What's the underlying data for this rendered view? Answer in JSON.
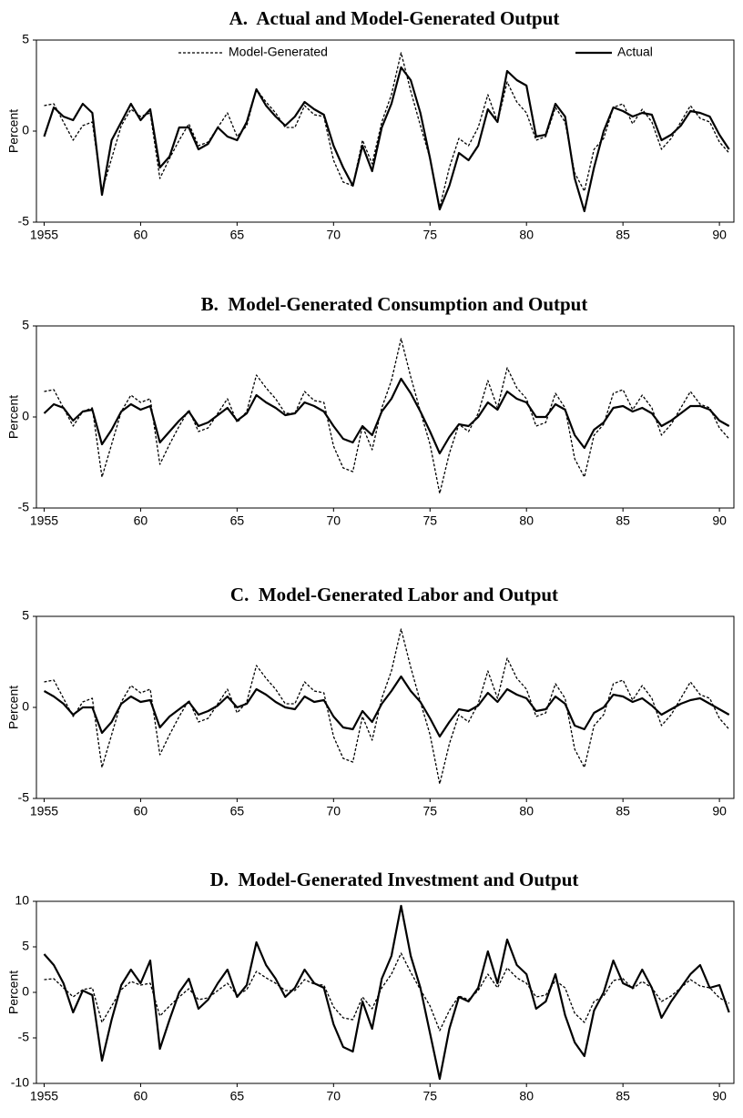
{
  "chart_data": [
    {
      "type": "line",
      "title": "A.  Actual and Model-Generated Output",
      "ylabel": "Percent",
      "legend": "top",
      "x": [
        1955,
        1955.5,
        1956,
        1956.5,
        1957,
        1957.5,
        1958,
        1958.5,
        1959,
        1959.5,
        1960,
        1960.5,
        1961,
        1961.5,
        1962,
        1962.5,
        1963,
        1963.5,
        1964,
        1964.5,
        1965,
        1965.5,
        1966,
        1966.5,
        1967,
        1967.5,
        1968,
        1968.5,
        1969,
        1969.5,
        1970,
        1970.5,
        1971,
        1971.5,
        1972,
        1972.5,
        1973,
        1973.5,
        1974,
        1974.5,
        1975,
        1975.5,
        1976,
        1976.5,
        1977,
        1977.5,
        1978,
        1978.5,
        1979,
        1979.5,
        1980,
        1980.5,
        1981,
        1981.5,
        1982,
        1982.5,
        1983,
        1983.5,
        1984,
        1984.5,
        1985,
        1985.5,
        1986,
        1986.5,
        1987,
        1987.5,
        1988,
        1988.5,
        1989,
        1989.5,
        1990,
        1990.5
      ],
      "xlim": [
        1954.6,
        1990.75
      ],
      "xticks": [
        {
          "value": 1955,
          "label": "1955"
        },
        {
          "value": 1960,
          "label": "60"
        },
        {
          "value": 1965,
          "label": "65"
        },
        {
          "value": 1970,
          "label": "70"
        },
        {
          "value": 1975,
          "label": "75"
        },
        {
          "value": 1980,
          "label": "80"
        },
        {
          "value": 1985,
          "label": "85"
        },
        {
          "value": 1990,
          "label": "90"
        }
      ],
      "ylim": [
        -5,
        5
      ],
      "yticks": [
        -5,
        0,
        5
      ],
      "series": [
        {
          "name": "Model-Generated",
          "color": "#000000",
          "style": "dashed",
          "values": [
            1.4,
            1.5,
            0.5,
            -0.5,
            0.3,
            0.5,
            -3.3,
            -1.5,
            0.3,
            1.2,
            0.8,
            1.0,
            -2.6,
            -1.5,
            -0.5,
            0.4,
            -0.8,
            -0.6,
            0.2,
            1.0,
            -0.3,
            0.3,
            2.3,
            1.6,
            1.0,
            0.2,
            0.2,
            1.4,
            0.9,
            0.8,
            -1.6,
            -2.8,
            -3.0,
            -0.5,
            -1.8,
            0.5,
            2.0,
            4.3,
            2.2,
            0.3,
            -1.5,
            -4.2,
            -2.0,
            -0.4,
            -0.8,
            0.2,
            2.0,
            0.5,
            2.7,
            1.6,
            1.0,
            -0.5,
            -0.3,
            1.3,
            0.5,
            -2.3,
            -3.3,
            -1.0,
            -0.4,
            1.3,
            1.5,
            0.4,
            1.2,
            0.5,
            -1.0,
            -0.4,
            0.5,
            1.4,
            0.7,
            0.5,
            -0.6,
            -1.2
          ]
        },
        {
          "name": "Actual",
          "color": "#000000",
          "style": "solid",
          "values": [
            -0.3,
            1.3,
            0.8,
            0.6,
            1.5,
            1.0,
            -3.5,
            -0.5,
            0.5,
            1.5,
            0.6,
            1.2,
            -2.0,
            -1.4,
            0.2,
            0.2,
            -1.0,
            -0.7,
            0.2,
            -0.3,
            -0.5,
            0.5,
            2.3,
            1.4,
            0.8,
            0.3,
            0.8,
            1.6,
            1.2,
            0.9,
            -0.8,
            -2.0,
            -3.0,
            -0.8,
            -2.2,
            0.2,
            1.5,
            3.5,
            2.8,
            1.0,
            -1.5,
            -4.3,
            -3.0,
            -1.2,
            -1.6,
            -0.8,
            1.2,
            0.5,
            3.3,
            2.8,
            2.5,
            -0.3,
            -0.2,
            1.5,
            0.8,
            -2.6,
            -4.4,
            -2.0,
            0.0,
            1.3,
            1.1,
            0.8,
            1.0,
            0.9,
            -0.5,
            -0.2,
            0.3,
            1.1,
            1.0,
            0.8,
            -0.2,
            -1.0
          ]
        }
      ]
    },
    {
      "type": "line",
      "title": "B.  Model-Generated Consumption and Output",
      "ylabel": "Percent",
      "x": [
        1955,
        1955.5,
        1956,
        1956.5,
        1957,
        1957.5,
        1958,
        1958.5,
        1959,
        1959.5,
        1960,
        1960.5,
        1961,
        1961.5,
        1962,
        1962.5,
        1963,
        1963.5,
        1964,
        1964.5,
        1965,
        1965.5,
        1966,
        1966.5,
        1967,
        1967.5,
        1968,
        1968.5,
        1969,
        1969.5,
        1970,
        1970.5,
        1971,
        1971.5,
        1972,
        1972.5,
        1973,
        1973.5,
        1974,
        1974.5,
        1975,
        1975.5,
        1976,
        1976.5,
        1977,
        1977.5,
        1978,
        1978.5,
        1979,
        1979.5,
        1980,
        1980.5,
        1981,
        1981.5,
        1982,
        1982.5,
        1983,
        1983.5,
        1984,
        1984.5,
        1985,
        1985.5,
        1986,
        1986.5,
        1987,
        1987.5,
        1988,
        1988.5,
        1989,
        1989.5,
        1990,
        1990.5
      ],
      "xlim": [
        1954.6,
        1990.75
      ],
      "xticks": [
        {
          "value": 1955,
          "label": "1955"
        },
        {
          "value": 1960,
          "label": "60"
        },
        {
          "value": 1965,
          "label": "65"
        },
        {
          "value": 1970,
          "label": "70"
        },
        {
          "value": 1975,
          "label": "75"
        },
        {
          "value": 1980,
          "label": "80"
        },
        {
          "value": 1985,
          "label": "85"
        },
        {
          "value": 1990,
          "label": "90"
        }
      ],
      "ylim": [
        -5,
        5
      ],
      "yticks": [
        -5,
        0,
        5
      ],
      "series": [
        {
          "color": "#000000",
          "style": "dashed",
          "values": [
            1.4,
            1.5,
            0.5,
            -0.5,
            0.3,
            0.5,
            -3.3,
            -1.5,
            0.3,
            1.2,
            0.8,
            1.0,
            -2.6,
            -1.5,
            -0.5,
            0.4,
            -0.8,
            -0.6,
            0.2,
            1.0,
            -0.3,
            0.3,
            2.3,
            1.6,
            1.0,
            0.2,
            0.2,
            1.4,
            0.9,
            0.8,
            -1.6,
            -2.8,
            -3.0,
            -0.5,
            -1.8,
            0.5,
            2.0,
            4.3,
            2.2,
            0.3,
            -1.5,
            -4.2,
            -2.0,
            -0.4,
            -0.8,
            0.2,
            2.0,
            0.5,
            2.7,
            1.6,
            1.0,
            -0.5,
            -0.3,
            1.3,
            0.5,
            -2.3,
            -3.3,
            -1.0,
            -0.4,
            1.3,
            1.5,
            0.4,
            1.2,
            0.5,
            -1.0,
            -0.4,
            0.5,
            1.4,
            0.7,
            0.5,
            -0.6,
            -1.2
          ]
        },
        {
          "color": "#000000",
          "style": "solid",
          "values": [
            0.2,
            0.7,
            0.5,
            -0.2,
            0.3,
            0.4,
            -1.5,
            -0.7,
            0.3,
            0.7,
            0.4,
            0.6,
            -1.4,
            -0.8,
            -0.2,
            0.3,
            -0.5,
            -0.3,
            0.1,
            0.5,
            -0.2,
            0.2,
            1.2,
            0.8,
            0.5,
            0.1,
            0.2,
            0.8,
            0.6,
            0.3,
            -0.5,
            -1.2,
            -1.4,
            -0.5,
            -1.0,
            0.3,
            1.0,
            2.1,
            1.3,
            0.3,
            -0.8,
            -2.0,
            -1.1,
            -0.4,
            -0.5,
            0.0,
            0.8,
            0.4,
            1.4,
            1.0,
            0.8,
            0.0,
            0.0,
            0.7,
            0.4,
            -1.0,
            -1.7,
            -0.7,
            -0.3,
            0.5,
            0.6,
            0.3,
            0.5,
            0.2,
            -0.5,
            -0.2,
            0.2,
            0.6,
            0.6,
            0.4,
            -0.2,
            -0.5
          ]
        }
      ]
    },
    {
      "type": "line",
      "title": "C.  Model-Generated Labor and Output",
      "ylabel": "Percent",
      "x": [
        1955,
        1955.5,
        1956,
        1956.5,
        1957,
        1957.5,
        1958,
        1958.5,
        1959,
        1959.5,
        1960,
        1960.5,
        1961,
        1961.5,
        1962,
        1962.5,
        1963,
        1963.5,
        1964,
        1964.5,
        1965,
        1965.5,
        1966,
        1966.5,
        1967,
        1967.5,
        1968,
        1968.5,
        1969,
        1969.5,
        1970,
        1970.5,
        1971,
        1971.5,
        1972,
        1972.5,
        1973,
        1973.5,
        1974,
        1974.5,
        1975,
        1975.5,
        1976,
        1976.5,
        1977,
        1977.5,
        1978,
        1978.5,
        1979,
        1979.5,
        1980,
        1980.5,
        1981,
        1981.5,
        1982,
        1982.5,
        1983,
        1983.5,
        1984,
        1984.5,
        1985,
        1985.5,
        1986,
        1986.5,
        1987,
        1987.5,
        1988,
        1988.5,
        1989,
        1989.5,
        1990,
        1990.5
      ],
      "xlim": [
        1954.6,
        1990.75
      ],
      "xticks": [
        {
          "value": 1955,
          "label": "1955"
        },
        {
          "value": 1960,
          "label": "60"
        },
        {
          "value": 1965,
          "label": "65"
        },
        {
          "value": 1970,
          "label": "70"
        },
        {
          "value": 1975,
          "label": "75"
        },
        {
          "value": 1980,
          "label": "80"
        },
        {
          "value": 1985,
          "label": "85"
        },
        {
          "value": 1990,
          "label": "90"
        }
      ],
      "ylim": [
        -5,
        5
      ],
      "yticks": [
        -5,
        0,
        5
      ],
      "series": [
        {
          "color": "#000000",
          "style": "dashed",
          "values": [
            1.4,
            1.5,
            0.5,
            -0.5,
            0.3,
            0.5,
            -3.3,
            -1.5,
            0.3,
            1.2,
            0.8,
            1.0,
            -2.6,
            -1.5,
            -0.5,
            0.4,
            -0.8,
            -0.6,
            0.2,
            1.0,
            -0.3,
            0.3,
            2.3,
            1.6,
            1.0,
            0.2,
            0.2,
            1.4,
            0.9,
            0.8,
            -1.6,
            -2.8,
            -3.0,
            -0.5,
            -1.8,
            0.5,
            2.0,
            4.3,
            2.2,
            0.3,
            -1.5,
            -4.2,
            -2.0,
            -0.4,
            -0.8,
            0.2,
            2.0,
            0.5,
            2.7,
            1.6,
            1.0,
            -0.5,
            -0.3,
            1.3,
            0.5,
            -2.3,
            -3.3,
            -1.0,
            -0.4,
            1.3,
            1.5,
            0.4,
            1.2,
            0.5,
            -1.0,
            -0.4,
            0.5,
            1.4,
            0.7,
            0.5,
            -0.6,
            -1.2
          ]
        },
        {
          "color": "#000000",
          "style": "solid",
          "values": [
            0.9,
            0.6,
            0.2,
            -0.4,
            0.0,
            0.0,
            -1.4,
            -0.8,
            0.2,
            0.6,
            0.3,
            0.4,
            -1.1,
            -0.5,
            -0.1,
            0.3,
            -0.4,
            -0.2,
            0.1,
            0.6,
            0.0,
            0.2,
            1.0,
            0.7,
            0.3,
            0.0,
            -0.1,
            0.6,
            0.3,
            0.4,
            -0.5,
            -1.1,
            -1.2,
            -0.2,
            -0.8,
            0.2,
            0.9,
            1.7,
            0.9,
            0.3,
            -0.6,
            -1.6,
            -0.8,
            -0.1,
            -0.2,
            0.1,
            0.8,
            0.3,
            1.0,
            0.7,
            0.5,
            -0.2,
            -0.1,
            0.6,
            0.2,
            -1.0,
            -1.2,
            -0.3,
            0.0,
            0.7,
            0.6,
            0.3,
            0.5,
            0.1,
            -0.4,
            -0.1,
            0.2,
            0.4,
            0.5,
            0.2,
            -0.1,
            -0.4
          ]
        }
      ]
    },
    {
      "type": "line",
      "title": "D.  Model-Generated Investment and Output",
      "ylabel": "Percent",
      "x": [
        1955,
        1955.5,
        1956,
        1956.5,
        1957,
        1957.5,
        1958,
        1958.5,
        1959,
        1959.5,
        1960,
        1960.5,
        1961,
        1961.5,
        1962,
        1962.5,
        1963,
        1963.5,
        1964,
        1964.5,
        1965,
        1965.5,
        1966,
        1966.5,
        1967,
        1967.5,
        1968,
        1968.5,
        1969,
        1969.5,
        1970,
        1970.5,
        1971,
        1971.5,
        1972,
        1972.5,
        1973,
        1973.5,
        1974,
        1974.5,
        1975,
        1975.5,
        1976,
        1976.5,
        1977,
        1977.5,
        1978,
        1978.5,
        1979,
        1979.5,
        1980,
        1980.5,
        1981,
        1981.5,
        1982,
        1982.5,
        1983,
        1983.5,
        1984,
        1984.5,
        1985,
        1985.5,
        1986,
        1986.5,
        1987,
        1987.5,
        1988,
        1988.5,
        1989,
        1989.5,
        1990,
        1990.5
      ],
      "xlim": [
        1954.6,
        1990.75
      ],
      "xticks": [
        {
          "value": 1955,
          "label": "1955"
        },
        {
          "value": 1960,
          "label": "60"
        },
        {
          "value": 1965,
          "label": "65"
        },
        {
          "value": 1970,
          "label": "70"
        },
        {
          "value": 1975,
          "label": "75"
        },
        {
          "value": 1980,
          "label": "80"
        },
        {
          "value": 1985,
          "label": "85"
        },
        {
          "value": 1990,
          "label": "90"
        }
      ],
      "ylim": [
        -10,
        10
      ],
      "yticks": [
        -10,
        -5,
        0,
        5,
        10
      ],
      "series": [
        {
          "color": "#000000",
          "style": "dashed",
          "values": [
            1.4,
            1.5,
            0.5,
            -0.5,
            0.3,
            0.5,
            -3.3,
            -1.5,
            0.3,
            1.2,
            0.8,
            1.0,
            -2.6,
            -1.5,
            -0.5,
            0.4,
            -0.8,
            -0.6,
            0.2,
            1.0,
            -0.3,
            0.3,
            2.3,
            1.6,
            1.0,
            0.2,
            0.2,
            1.4,
            0.9,
            0.8,
            -1.6,
            -2.8,
            -3.0,
            -0.5,
            -1.8,
            0.5,
            2.0,
            4.3,
            2.2,
            0.3,
            -1.5,
            -4.2,
            -2.0,
            -0.4,
            -0.8,
            0.2,
            2.0,
            0.5,
            2.7,
            1.6,
            1.0,
            -0.5,
            -0.3,
            1.3,
            0.5,
            -2.3,
            -3.3,
            -1.0,
            -0.4,
            1.3,
            1.5,
            0.4,
            1.2,
            0.5,
            -1.0,
            -0.4,
            0.5,
            1.4,
            0.7,
            0.5,
            -0.6,
            -1.2
          ]
        },
        {
          "color": "#000000",
          "style": "solid",
          "values": [
            4.2,
            3.0,
            1.0,
            -2.2,
            0.2,
            -0.3,
            -7.5,
            -3.0,
            0.8,
            2.5,
            1.0,
            3.5,
            -6.2,
            -3.0,
            0.0,
            1.5,
            -1.8,
            -0.8,
            1.0,
            2.5,
            -0.5,
            0.8,
            5.5,
            3.0,
            1.5,
            -0.5,
            0.5,
            2.5,
            1.0,
            0.5,
            -3.5,
            -6.0,
            -6.5,
            -1.0,
            -4.0,
            1.5,
            4.0,
            9.5,
            4.0,
            0.5,
            -4.5,
            -9.5,
            -4.0,
            -0.5,
            -1.0,
            0.5,
            4.5,
            1.0,
            5.8,
            3.0,
            2.0,
            -1.8,
            -1.0,
            2.0,
            -2.5,
            -5.5,
            -7.0,
            -2.0,
            0.0,
            3.5,
            1.0,
            0.5,
            2.5,
            0.5,
            -2.8,
            -1.0,
            0.5,
            2.0,
            3.0,
            0.5,
            0.8,
            -2.2
          ]
        }
      ]
    }
  ]
}
